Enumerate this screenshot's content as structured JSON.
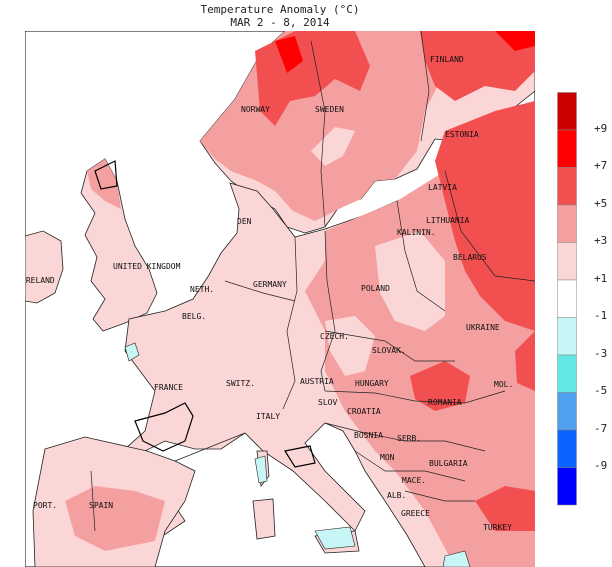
{
  "title": "Temperature Anomaly (°C)",
  "subtitle": "MAR 2 - 8, 2014",
  "labels": {
    "finland": "FINLAND",
    "norway": "NORWAY",
    "sweden": "SWEDEN",
    "estonia": "ESTONIA",
    "latvia": "LATVIA",
    "lithuania": "LITHUANIA",
    "kaliningrad": "KALININ.",
    "belarus": "BELARUS",
    "denmark": "DEN",
    "uk": "UNITED KINGDOM",
    "ireland": "IRELAND",
    "netherlands": "NETH.",
    "germany": "GERMANY",
    "poland": "POLAND",
    "ukraine": "UKRAINE",
    "belgium": "BELG.",
    "czech": "CZECH.",
    "slovakia": "SLOVAK.",
    "moldova": "MOL.",
    "france": "FRANCE",
    "switzerland": "SWITZ.",
    "austria": "AUSTRIA",
    "hungary": "HUNGARY",
    "romania": "ROMANIA",
    "slovenia": "SLOV",
    "croatia": "CROATIA",
    "italy": "ITALY",
    "bosnia": "BOSNIA",
    "serbia": "SERB.",
    "montenegro": "MON",
    "bulgaria": "BULGARIA",
    "macedonia": "MACE.",
    "albania": "ALB.",
    "greece": "GREECE",
    "portugal": "PORT.",
    "spain": "SPAIN",
    "turkey": "TURKEY"
  },
  "legend": {
    "labels": [
      "+9",
      "+7",
      "+5",
      "+3",
      "+1",
      "-1",
      "-3",
      "-5",
      "-7",
      "-9"
    ],
    "colors": [
      "#cc0000",
      "#ff0000",
      "#f25050",
      "#f5a0a0",
      "#fbd6d6",
      "#ffffff",
      "#c8f5f5",
      "#64e6e6",
      "#50a0f0",
      "#0a64ff",
      "#0000ff"
    ]
  }
}
